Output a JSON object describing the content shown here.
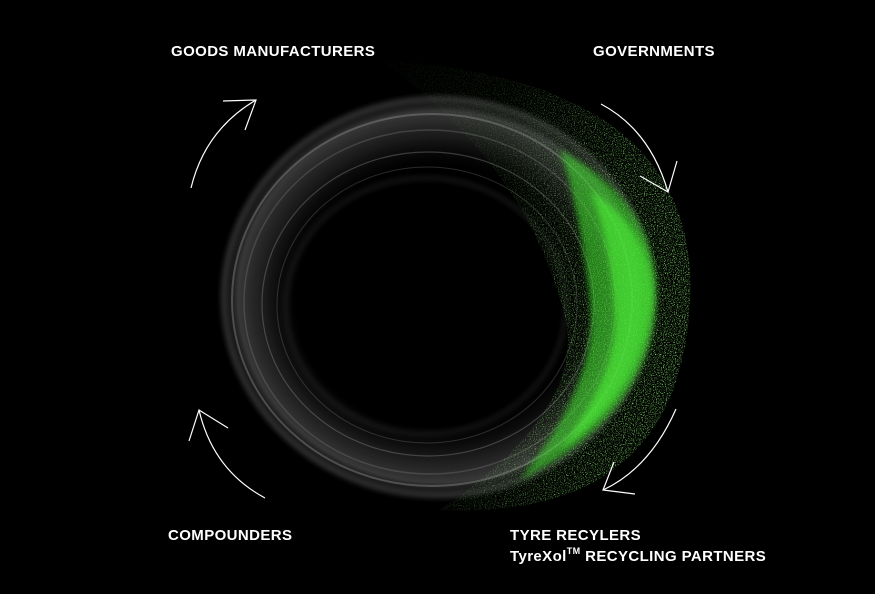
{
  "labels": {
    "goods_manufacturers": "GOODS MANUFACTURERS",
    "governments": "GOVERNMENTS",
    "compounders": "COMPOUNDERS",
    "tyre_recyclers": "TYRE RECYLERS",
    "recycling_partners_brand": "TyreXol",
    "trademark": "TM",
    "recycling_partners_suffix": " RECYCLING PARTNERS"
  },
  "colors": {
    "background": "#000000",
    "text": "#ffffff",
    "accent_green": "#3ddc2a",
    "tyre_grey": "#8a8a8a",
    "arrow": "#ffffff"
  },
  "icons": [
    "cycle-arrow-top-left-icon",
    "cycle-arrow-top-right-icon",
    "cycle-arrow-bottom-right-icon",
    "cycle-arrow-bottom-left-icon"
  ]
}
